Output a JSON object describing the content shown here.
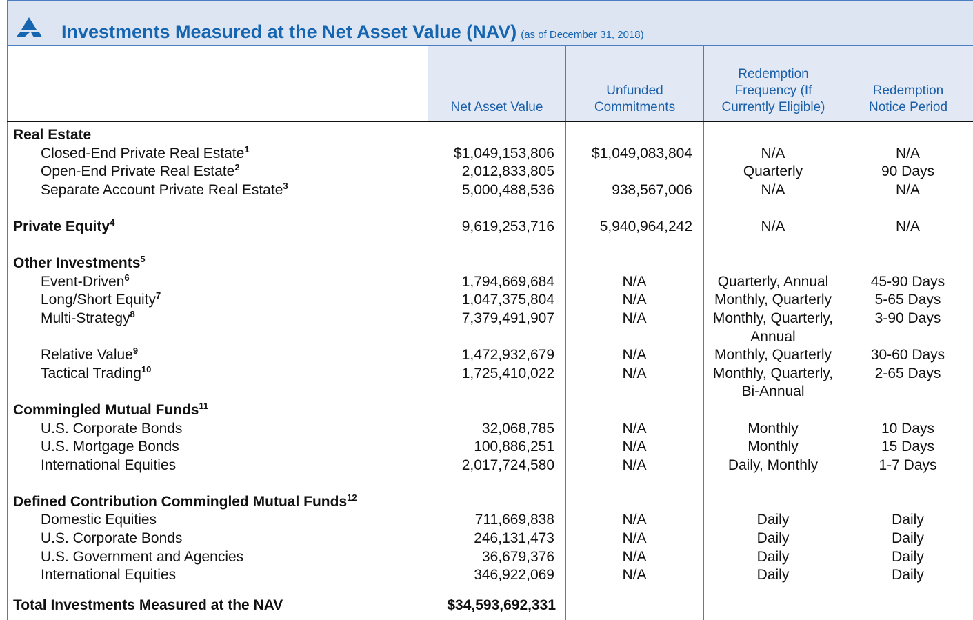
{
  "header": {
    "title": "Investments Measured at the Net Asset Value (NAV)",
    "subtitle": "(as of December 31, 2018)"
  },
  "table": {
    "columns": [
      "Net Asset Value",
      "Unfunded Commitments",
      "Redemption Frequency (If Currently Eligible)",
      "Redemption Notice Period"
    ],
    "sections": [
      {
        "title": "Real Estate",
        "rows": [
          {
            "label": "Closed-End Private Real Estate",
            "note": "1",
            "cells": [
              "$1,049,153,806",
              "$1,049,083,804",
              "N/A",
              "N/A"
            ]
          },
          {
            "label": "Open-End Private Real Estate",
            "note": "2",
            "cells": [
              "2,012,833,805",
              "",
              "Quarterly",
              "90 Days"
            ]
          },
          {
            "label": "Separate Account Private Real Estate",
            "note": "3",
            "cells": [
              "5,000,488,536",
              "938,567,006",
              "N/A",
              "N/A"
            ]
          }
        ]
      },
      {
        "title": "Private Equity",
        "note": "4",
        "cells": [
          "9,619,253,716",
          "5,940,964,242",
          "N/A",
          "N/A"
        ],
        "rows": []
      },
      {
        "title": "Other Investments",
        "note": "5",
        "rows": [
          {
            "label": "Event-Driven",
            "note": "6",
            "cells": [
              "1,794,669,684",
              "N/A",
              "Quarterly, Annual",
              "45-90 Days"
            ]
          },
          {
            "label": "Long/Short Equity",
            "note": "7",
            "cells": [
              "1,047,375,804",
              "N/A",
              "Monthly, Quarterly",
              "5-65 Days"
            ]
          },
          {
            "label": "Multi-Strategy",
            "note": "8",
            "cells": [
              "7,379,491,907",
              "N/A",
              "Monthly, Quarterly, Annual",
              "3-90 Days"
            ]
          },
          {
            "label": "Relative Value",
            "note": "9",
            "cells": [
              "1,472,932,679",
              "N/A",
              "Monthly, Quarterly",
              "30-60 Days"
            ]
          },
          {
            "label": "Tactical Trading",
            "note": "10",
            "cells": [
              "1,725,410,022",
              "N/A",
              "Monthly, Quarterly, Bi-Annual",
              "2-65 Days"
            ]
          }
        ]
      },
      {
        "title": "Commingled Mutual Funds",
        "note": "11",
        "rows": [
          {
            "label": "U.S. Corporate Bonds",
            "cells": [
              "32,068,785",
              "N/A",
              "Monthly",
              "10 Days"
            ]
          },
          {
            "label": "U.S. Mortgage Bonds",
            "cells": [
              "100,886,251",
              "N/A",
              "Monthly",
              "15 Days"
            ]
          },
          {
            "label": "International Equities",
            "cells": [
              "2,017,724,580",
              "N/A",
              "Daily, Monthly",
              "1-7 Days"
            ]
          }
        ]
      },
      {
        "title": "Defined Contribution Commingled Mutual Funds",
        "note": "12",
        "rows": [
          {
            "label": "Domestic Equities",
            "cells": [
              "711,669,838",
              "N/A",
              "Daily",
              "Daily"
            ]
          },
          {
            "label": "U.S. Corporate Bonds",
            "cells": [
              "246,131,473",
              "N/A",
              "Daily",
              "Daily"
            ]
          },
          {
            "label": "U.S. Government and Agencies",
            "cells": [
              "36,679,376",
              "N/A",
              "Daily",
              "Daily"
            ]
          },
          {
            "label": "International Equities",
            "cells": [
              "346,922,069",
              "N/A",
              "Daily",
              "Daily"
            ]
          }
        ]
      }
    ],
    "total": {
      "label": "Total Investments Measured at the NAV",
      "cells": [
        "$34,593,692,331"
      ]
    }
  }
}
